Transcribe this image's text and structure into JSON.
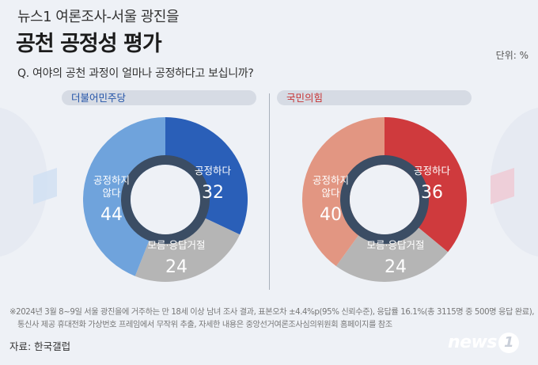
{
  "header": {
    "supertitle": "뉴스1 여론조사-서울 광진을",
    "title": "공천 공정성 평가",
    "unit": "단위: %",
    "question": "Q. 여야의 공천 과정이 얼마나 공정하다고 보십니까?"
  },
  "chart_data": [
    {
      "type": "pie",
      "party": "더불어민주당",
      "categories": [
        "공정하다",
        "공정하지 않다",
        "모름·응답거절"
      ],
      "values": [
        32,
        44,
        24
      ],
      "colors": [
        "#2a5fb8",
        "#6fa3dc",
        "#b5b5b5"
      ]
    },
    {
      "type": "pie",
      "party": "국민의힘",
      "categories": [
        "공정하다",
        "공정하지 않다",
        "모름·응답거절"
      ],
      "values": [
        36,
        40,
        24
      ],
      "colors": [
        "#cf3a3d",
        "#e29682",
        "#b5b5b5"
      ]
    }
  ],
  "footnote": {
    "line1": "※2024년 3월 8~9일 서울 광진을에 거주하는 만 18세 이상 남녀 조사 결과, 표본오차 ±4.4%p(95% 신뢰수준), 응답률 16.1%(총 3115명 중 500명 응답 완료),",
    "line2": "통신사 제공 휴대전화 가상번호 프레임에서 무작위 추출, 자세한 내용은 중앙선거여론조사심의위원회 홈페이지를 참조"
  },
  "source": "자료: 한국갤럽",
  "logo": {
    "text": "news",
    "badge": "1"
  }
}
